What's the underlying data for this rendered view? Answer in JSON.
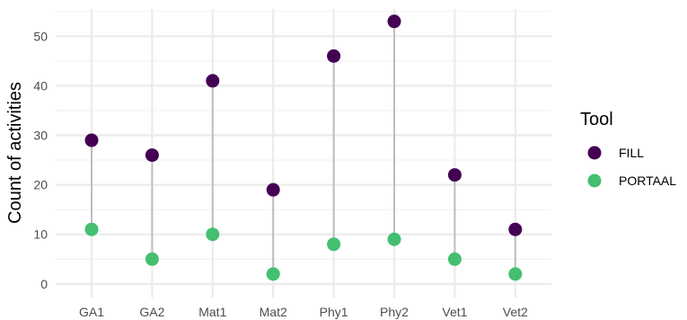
{
  "chart_data": {
    "type": "dumbbell",
    "categories": [
      "GA1",
      "GA2",
      "Mat1",
      "Mat2",
      "Phy1",
      "Phy2",
      "Vet1",
      "Vet2"
    ],
    "series": [
      {
        "name": "FILL",
        "values": [
          29,
          26,
          41,
          19,
          46,
          53,
          22,
          11
        ],
        "color": "#440154"
      },
      {
        "name": "PORTAAL",
        "values": [
          11,
          5,
          10,
          2,
          8,
          9,
          5,
          2
        ],
        "color": "#44BF70"
      }
    ],
    "ylabel": "Count of activities",
    "xlabel": "",
    "ylim": [
      0,
      55
    ],
    "yticks": [
      0,
      10,
      20,
      30,
      40,
      50
    ],
    "legend_title": "Tool",
    "legend_position": "right",
    "grid": true,
    "segment_color": "#bebebe"
  }
}
